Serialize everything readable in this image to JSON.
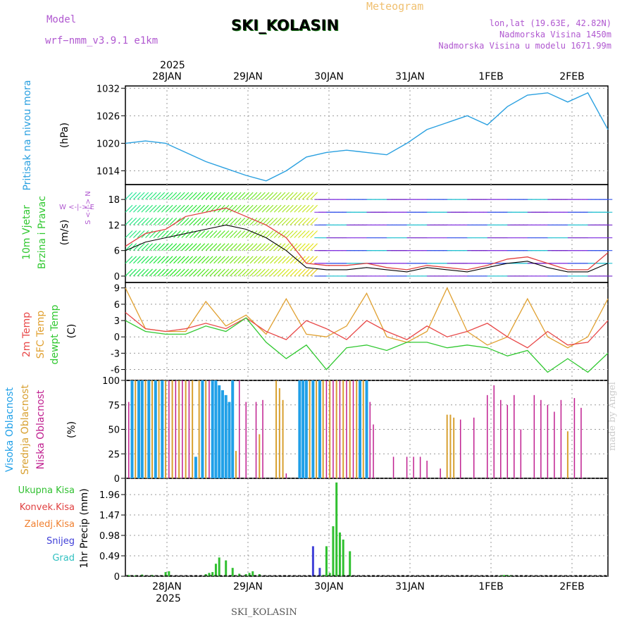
{
  "header": {
    "model_label": "Model",
    "model_value": "wrf−nmm_v3.9.1 e1km",
    "title": "Meteogram",
    "station": "SKI_KOLASIN",
    "coords": "lon,lat (19.63E, 42.82N)",
    "elevation": "Nadmorska Visina 1450m",
    "model_elevation": "Nadmorska Visina u modelu 1671.99m"
  },
  "footer": {
    "station": "SKI_KOLASIN",
    "credit": "made by Angel"
  },
  "colors": {
    "pressure": "#2aa0e0",
    "wind_speed": "#000000",
    "wind_gust": "#e04040",
    "temp2m": "#e84848",
    "sfc_temp": "#e0a030",
    "dewpt": "#30c830",
    "cloud_high": "#20a0e8",
    "cloud_mid": "#d8a030",
    "cloud_low": "#c02090",
    "precip_total": "#30c030",
    "precip_conv": "#e04040",
    "precip_frozen": "#f08030",
    "precip_snow": "#4040d8",
    "precip_hail": "#30c0c0"
  },
  "axes": {
    "top_year": "2025",
    "bottom_year": "2025",
    "date_ticks": [
      "28JAN",
      "29JAN",
      "30JAN",
      "31JAN",
      "1FEB",
      "2FEB"
    ]
  },
  "panel_labels": {
    "pressure": {
      "line1": "Pritisak na nivou mora",
      "unit": "(hPa)"
    },
    "wind": {
      "line1": "10m Vjetar",
      "line2": "Brzina i Pravac",
      "unit": "(m/s)",
      "compass": "W <-|-> E",
      "compass_ns": "S <-|-> N"
    },
    "temp": {
      "line1": "2m Temp",
      "line2": "SFC Temp",
      "line3": "dewpt Temp",
      "unit": "(C)"
    },
    "cloud": {
      "line1": "Visoka Oblacnost",
      "line2": "Srednja Oblacnost",
      "line3": "Niska Oblacnost",
      "unit": "(%)"
    },
    "precip": {
      "unit": "1hr Precip (mm)",
      "legend": [
        "Ukupna Kisa",
        "Konvek.Kisa",
        "Zaledj.Kisa",
        "Snijeg",
        "Grad"
      ]
    }
  },
  "chart_data": [
    {
      "type": "line",
      "name": "pressure",
      "ylabel": "(hPa)",
      "yticks": [
        1014,
        1020,
        1026,
        1032
      ],
      "ylim": [
        1011,
        1032.5
      ],
      "x_hours": [
        0,
        6,
        12,
        18,
        24,
        30,
        36,
        42,
        48,
        54,
        60,
        66,
        72,
        78,
        84,
        90,
        96,
        102,
        108,
        114,
        120,
        126,
        132,
        138,
        144
      ],
      "values": [
        1020,
        1020.5,
        1020,
        1018,
        1016,
        1014.5,
        1013,
        1011.8,
        1014,
        1017,
        1018,
        1018.5,
        1018,
        1017.5,
        1020,
        1023,
        1024.5,
        1026,
        1024,
        1028,
        1030.5,
        1031,
        1029,
        1031,
        1023
      ]
    },
    {
      "type": "line",
      "name": "wind",
      "ylabel": "(m/s)",
      "yticks": [
        0,
        6,
        12,
        18
      ],
      "ylim": [
        -1.5,
        21.5
      ],
      "x_hours": [
        0,
        6,
        12,
        18,
        24,
        30,
        36,
        42,
        48,
        54,
        60,
        66,
        72,
        78,
        84,
        90,
        96,
        102,
        108,
        114,
        120,
        126,
        132,
        138,
        144
      ],
      "series": [
        {
          "name": "speed",
          "values": [
            6,
            8,
            9,
            10,
            11,
            12,
            11,
            9,
            6,
            2,
            1.5,
            1.5,
            2,
            1.5,
            1,
            2,
            1.5,
            1,
            2,
            3,
            3.5,
            2,
            1,
            1,
            3
          ]
        },
        {
          "name": "gust",
          "values": [
            7,
            10,
            11,
            14,
            15,
            16,
            14,
            12,
            9,
            3,
            2.5,
            2.5,
            3,
            2,
            1.5,
            2.5,
            2,
            1.5,
            2.5,
            4,
            4.5,
            3,
            1.5,
            1.5,
            5.5
          ]
        }
      ]
    },
    {
      "type": "line",
      "name": "temperature",
      "ylabel": "(C)",
      "yticks": [
        -6,
        -3,
        0,
        3,
        6,
        9
      ],
      "ylim": [
        -8,
        10
      ],
      "x_hours": [
        0,
        6,
        12,
        18,
        24,
        30,
        36,
        42,
        48,
        54,
        60,
        66,
        72,
        78,
        84,
        90,
        96,
        102,
        108,
        114,
        120,
        126,
        132,
        138,
        144
      ],
      "series": [
        {
          "name": "2m Temp",
          "values": [
            4.5,
            1.5,
            1,
            1.5,
            2.5,
            1.5,
            3.5,
            1,
            -0.5,
            3,
            1.5,
            -0.5,
            3,
            1,
            -0.5,
            2,
            0,
            1,
            2.5,
            0,
            -2,
            1,
            -1.5,
            -1,
            3
          ]
        },
        {
          "name": "SFC Temp",
          "values": [
            9,
            1.5,
            1,
            1,
            6.5,
            2,
            4,
            0.5,
            7,
            0.5,
            0,
            2,
            8,
            0,
            -1,
            1,
            9,
            1,
            -1.5,
            0,
            7,
            0,
            -2,
            0,
            7
          ]
        },
        {
          "name": "dewpt Temp",
          "values": [
            3,
            1,
            0.5,
            0.5,
            2,
            1,
            3.5,
            -1,
            -4,
            -1.5,
            -6,
            -2,
            -1.5,
            -2.5,
            -1,
            -1,
            -2,
            -1.5,
            -2,
            -3.5,
            -2.5,
            -6.5,
            -4,
            -6.5,
            -3
          ]
        }
      ]
    },
    {
      "type": "bar",
      "name": "cloud",
      "ylabel": "(%)",
      "yticks": [
        0,
        25,
        50,
        75,
        100
      ],
      "ylim": [
        0,
        100
      ],
      "series": [
        {
          "name": "Visoka Oblacnost",
          "x_hours": [
            2,
            4,
            5,
            7,
            9,
            11,
            21,
            23,
            26,
            27,
            28,
            29,
            30,
            31,
            32,
            52,
            53,
            54,
            56,
            58,
            70,
            72
          ],
          "values": [
            100,
            100,
            100,
            100,
            100,
            100,
            22,
            100,
            100,
            100,
            95,
            90,
            85,
            78,
            100,
            100,
            100,
            100,
            100,
            100,
            100,
            100
          ]
        },
        {
          "name": "Srednja Oblacnost",
          "x_hours": [
            3,
            6,
            8,
            10,
            12,
            14,
            16,
            18,
            20,
            22,
            24,
            33,
            40,
            45,
            46,
            47,
            55,
            57,
            59,
            61,
            63,
            65,
            67,
            69,
            71,
            96,
            97,
            98,
            132
          ],
          "values": [
            100,
            100,
            100,
            100,
            100,
            100,
            100,
            100,
            100,
            100,
            100,
            28,
            45,
            100,
            92,
            80,
            100,
            100,
            100,
            100,
            100,
            100,
            100,
            100,
            100,
            65,
            65,
            62,
            48
          ]
        },
        {
          "name": "Niska Oblacnost",
          "x_hours": [
            1,
            13,
            15,
            17,
            19,
            25,
            34,
            36,
            39,
            41,
            48,
            60,
            62,
            64,
            66,
            68,
            73,
            74,
            80,
            84,
            86,
            88,
            90,
            94,
            100,
            104,
            108,
            110,
            112,
            114,
            116,
            118,
            122,
            124,
            126,
            128,
            130,
            134,
            136
          ],
          "values": [
            78,
            100,
            100,
            100,
            100,
            100,
            100,
            78,
            78,
            80,
            5,
            100,
            100,
            100,
            100,
            100,
            78,
            55,
            22,
            22,
            22,
            22,
            18,
            10,
            60,
            62,
            85,
            95,
            80,
            75,
            85,
            50,
            85,
            80,
            75,
            68,
            80,
            82,
            72
          ]
        }
      ]
    },
    {
      "type": "bar",
      "name": "precipitation",
      "ylabel": "1hr Precip (mm)",
      "yticks": [
        0,
        0.49,
        0.98,
        1.47,
        1.96
      ],
      "ylim": [
        0,
        2.35
      ],
      "series": [
        {
          "name": "Ukupna Kisa",
          "x_hours": [
            1,
            3,
            5,
            8,
            12,
            13,
            24,
            25,
            26,
            27,
            28,
            30,
            32,
            34,
            36,
            37,
            38,
            40,
            59,
            60,
            61,
            62,
            63,
            64,
            65,
            67,
            112,
            113,
            114,
            115
          ],
          "values": [
            0.03,
            0.02,
            0.04,
            0.03,
            0.1,
            0.12,
            0.05,
            0.08,
            0.1,
            0.3,
            0.45,
            0.38,
            0.2,
            0.06,
            0.05,
            0.08,
            0.12,
            0.05,
            0.03,
            0.72,
            0.08,
            1.2,
            2.25,
            1.05,
            0.88,
            0.6,
            0.02,
            0.03,
            0.03,
            0.02
          ]
        },
        {
          "name": "Snijeg",
          "x_hours": [
            56,
            58
          ],
          "values": [
            0.72,
            0.2
          ]
        }
      ]
    }
  ]
}
